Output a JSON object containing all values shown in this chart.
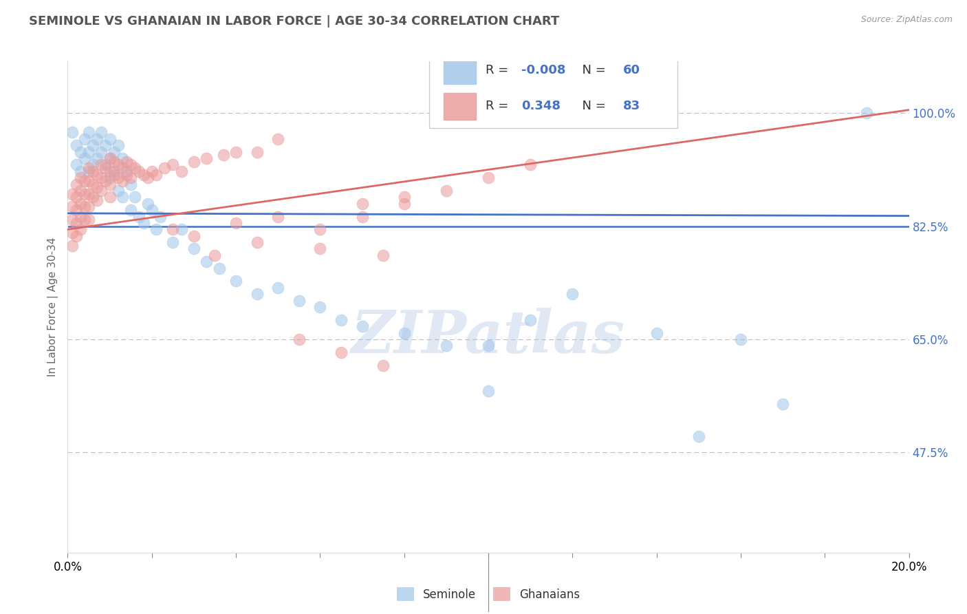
{
  "title": "SEMINOLE VS GHANAIAN IN LABOR FORCE | AGE 30-34 CORRELATION CHART",
  "source": "Source: ZipAtlas.com",
  "ylabel": "In Labor Force | Age 30-34",
  "y_ticks": [
    0.475,
    0.65,
    0.825,
    1.0
  ],
  "y_tick_labels": [
    "47.5%",
    "65.0%",
    "82.5%",
    "100.0%"
  ],
  "x_range": [
    0.0,
    0.2
  ],
  "y_range": [
    0.32,
    1.08
  ],
  "blue_R": -0.008,
  "blue_N": 60,
  "pink_R": 0.348,
  "pink_N": 83,
  "blue_color": "#9fc5e8",
  "pink_color": "#ea9999",
  "blue_line_color": "#4472c4",
  "pink_line_color": "#e06666",
  "solid_line_y": 0.825,
  "watermark": "ZIPatlas",
  "blue_x": [
    0.001,
    0.002,
    0.002,
    0.003,
    0.003,
    0.004,
    0.004,
    0.005,
    0.005,
    0.005,
    0.006,
    0.006,
    0.007,
    0.007,
    0.008,
    0.008,
    0.009,
    0.009,
    0.01,
    0.01,
    0.01,
    0.011,
    0.011,
    0.012,
    0.012,
    0.013,
    0.013,
    0.014,
    0.015,
    0.015,
    0.016,
    0.017,
    0.018,
    0.019,
    0.02,
    0.021,
    0.022,
    0.025,
    0.027,
    0.03,
    0.033,
    0.036,
    0.04,
    0.045,
    0.05,
    0.055,
    0.06,
    0.065,
    0.07,
    0.08,
    0.09,
    0.1,
    0.11,
    0.12,
    0.14,
    0.16,
    0.17,
    0.19,
    0.1,
    0.15
  ],
  "blue_y": [
    0.97,
    0.95,
    0.92,
    0.94,
    0.91,
    0.96,
    0.93,
    0.97,
    0.94,
    0.91,
    0.95,
    0.92,
    0.96,
    0.93,
    0.97,
    0.94,
    0.95,
    0.92,
    0.96,
    0.93,
    0.9,
    0.94,
    0.91,
    0.95,
    0.88,
    0.93,
    0.87,
    0.91,
    0.89,
    0.85,
    0.87,
    0.84,
    0.83,
    0.86,
    0.85,
    0.82,
    0.84,
    0.8,
    0.82,
    0.79,
    0.77,
    0.76,
    0.74,
    0.72,
    0.73,
    0.71,
    0.7,
    0.68,
    0.67,
    0.66,
    0.64,
    0.64,
    0.68,
    0.72,
    0.66,
    0.65,
    0.55,
    1.0,
    0.57,
    0.5
  ],
  "pink_x": [
    0.001,
    0.001,
    0.001,
    0.001,
    0.001,
    0.002,
    0.002,
    0.002,
    0.002,
    0.002,
    0.003,
    0.003,
    0.003,
    0.003,
    0.003,
    0.004,
    0.004,
    0.004,
    0.004,
    0.005,
    0.005,
    0.005,
    0.005,
    0.005,
    0.006,
    0.006,
    0.006,
    0.007,
    0.007,
    0.007,
    0.008,
    0.008,
    0.008,
    0.009,
    0.009,
    0.01,
    0.01,
    0.01,
    0.01,
    0.011,
    0.011,
    0.012,
    0.012,
    0.013,
    0.013,
    0.014,
    0.014,
    0.015,
    0.015,
    0.016,
    0.017,
    0.018,
    0.019,
    0.02,
    0.021,
    0.023,
    0.025,
    0.027,
    0.03,
    0.033,
    0.037,
    0.04,
    0.045,
    0.05,
    0.06,
    0.07,
    0.08,
    0.09,
    0.1,
    0.11,
    0.055,
    0.065,
    0.075,
    0.035,
    0.045,
    0.06,
    0.075,
    0.025,
    0.03,
    0.04,
    0.05,
    0.07,
    0.08
  ],
  "pink_y": [
    0.875,
    0.855,
    0.835,
    0.815,
    0.795,
    0.89,
    0.87,
    0.85,
    0.83,
    0.81,
    0.9,
    0.88,
    0.86,
    0.84,
    0.82,
    0.895,
    0.875,
    0.855,
    0.835,
    0.915,
    0.895,
    0.875,
    0.855,
    0.835,
    0.91,
    0.89,
    0.87,
    0.905,
    0.885,
    0.865,
    0.92,
    0.9,
    0.88,
    0.915,
    0.895,
    0.93,
    0.91,
    0.89,
    0.87,
    0.925,
    0.905,
    0.92,
    0.9,
    0.915,
    0.895,
    0.925,
    0.905,
    0.92,
    0.9,
    0.915,
    0.91,
    0.905,
    0.9,
    0.91,
    0.905,
    0.915,
    0.92,
    0.91,
    0.925,
    0.93,
    0.935,
    0.94,
    0.94,
    0.96,
    0.82,
    0.84,
    0.86,
    0.88,
    0.9,
    0.92,
    0.65,
    0.63,
    0.61,
    0.78,
    0.8,
    0.79,
    0.78,
    0.82,
    0.81,
    0.83,
    0.84,
    0.86,
    0.87
  ]
}
